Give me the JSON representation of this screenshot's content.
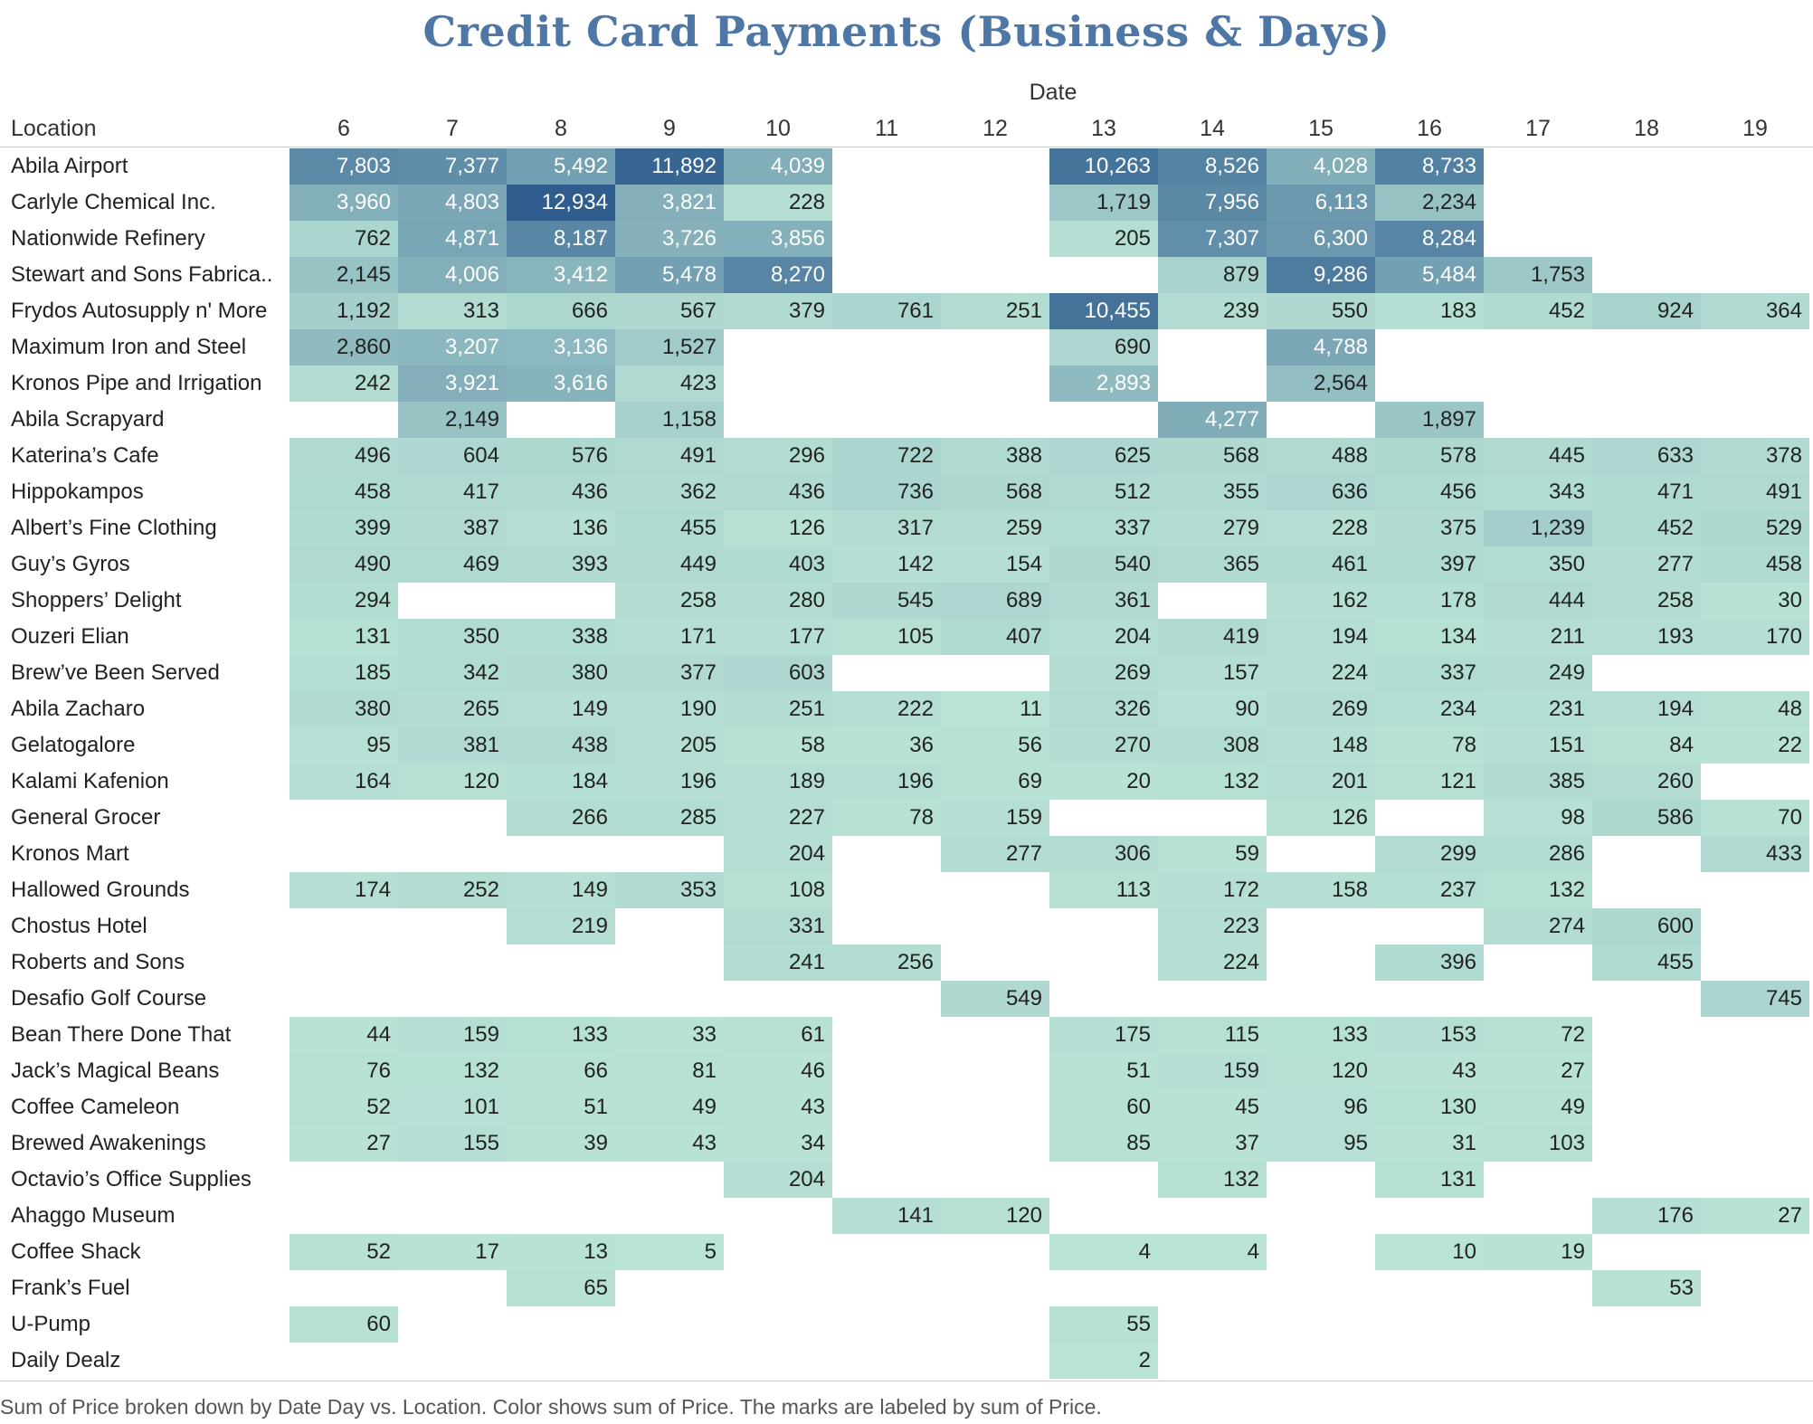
{
  "chart_data": {
    "type": "heatmap",
    "title": "Credit Card Payments (Business & Days)",
    "column_header": "Date",
    "row_header": "Location",
    "caption": "Sum of Price broken down by Date Day vs. Location.  Color shows sum of Price.  The marks are labeled by sum of Price.",
    "columns": [
      "6",
      "7",
      "8",
      "9",
      "10",
      "11",
      "12",
      "13",
      "14",
      "15",
      "16",
      "17",
      "18",
      "19"
    ],
    "rows": [
      {
        "label": "Abila Airport",
        "values": [
          7803,
          7377,
          5492,
          11892,
          4039,
          null,
          null,
          10263,
          8526,
          4028,
          8733,
          null,
          null,
          null
        ]
      },
      {
        "label": "Carlyle Chemical Inc.",
        "values": [
          3960,
          4803,
          12934,
          3821,
          228,
          null,
          null,
          1719,
          7956,
          6113,
          2234,
          null,
          null,
          null
        ]
      },
      {
        "label": "Nationwide Refinery",
        "values": [
          762,
          4871,
          8187,
          3726,
          3856,
          null,
          null,
          205,
          7307,
          6300,
          8284,
          null,
          null,
          null
        ]
      },
      {
        "label": "Stewart and Sons Fabrica..",
        "values": [
          2145,
          4006,
          3412,
          5478,
          8270,
          null,
          null,
          null,
          879,
          9286,
          5484,
          1753,
          null,
          null
        ]
      },
      {
        "label": "Frydos Autosupply n' More",
        "values": [
          1192,
          313,
          666,
          567,
          379,
          761,
          251,
          10455,
          239,
          550,
          183,
          452,
          924,
          364
        ]
      },
      {
        "label": "Maximum Iron and Steel",
        "values": [
          2860,
          3207,
          3136,
          1527,
          null,
          null,
          null,
          690,
          null,
          4788,
          null,
          null,
          null,
          null
        ]
      },
      {
        "label": "Kronos Pipe and Irrigation",
        "values": [
          242,
          3921,
          3616,
          423,
          null,
          null,
          null,
          2893,
          null,
          2564,
          null,
          null,
          null,
          null
        ]
      },
      {
        "label": "Abila Scrapyard",
        "values": [
          null,
          2149,
          null,
          1158,
          null,
          null,
          null,
          null,
          4277,
          null,
          1897,
          null,
          null,
          null
        ]
      },
      {
        "label": "Katerina’s Cafe",
        "values": [
          496,
          604,
          576,
          491,
          296,
          722,
          388,
          625,
          568,
          488,
          578,
          445,
          633,
          378
        ]
      },
      {
        "label": "Hippokampos",
        "values": [
          458,
          417,
          436,
          362,
          436,
          736,
          568,
          512,
          355,
          636,
          456,
          343,
          471,
          491
        ]
      },
      {
        "label": "Albert’s Fine Clothing",
        "values": [
          399,
          387,
          136,
          455,
          126,
          317,
          259,
          337,
          279,
          228,
          375,
          1239,
          452,
          529
        ]
      },
      {
        "label": "Guy’s Gyros",
        "values": [
          490,
          469,
          393,
          449,
          403,
          142,
          154,
          540,
          365,
          461,
          397,
          350,
          277,
          458
        ]
      },
      {
        "label": "Shoppers’ Delight",
        "values": [
          294,
          null,
          null,
          258,
          280,
          545,
          689,
          361,
          null,
          162,
          178,
          444,
          258,
          30
        ]
      },
      {
        "label": "Ouzeri Elian",
        "values": [
          131,
          350,
          338,
          171,
          177,
          105,
          407,
          204,
          419,
          194,
          134,
          211,
          193,
          170
        ]
      },
      {
        "label": "Brew’ve Been Served",
        "values": [
          185,
          342,
          380,
          377,
          603,
          null,
          null,
          269,
          157,
          224,
          337,
          249,
          null,
          null
        ]
      },
      {
        "label": "Abila Zacharo",
        "values": [
          380,
          265,
          149,
          190,
          251,
          222,
          11,
          326,
          90,
          269,
          234,
          231,
          194,
          48
        ]
      },
      {
        "label": "Gelatogalore",
        "values": [
          95,
          381,
          438,
          205,
          58,
          36,
          56,
          270,
          308,
          148,
          78,
          151,
          84,
          22
        ]
      },
      {
        "label": "Kalami Kafenion",
        "values": [
          164,
          120,
          184,
          196,
          189,
          196,
          69,
          20,
          132,
          201,
          121,
          385,
          260,
          null
        ]
      },
      {
        "label": "General Grocer",
        "values": [
          null,
          null,
          266,
          285,
          227,
          78,
          159,
          null,
          null,
          126,
          null,
          98,
          586,
          70
        ]
      },
      {
        "label": "Kronos Mart",
        "values": [
          null,
          null,
          null,
          null,
          204,
          null,
          277,
          306,
          59,
          null,
          299,
          286,
          null,
          433
        ]
      },
      {
        "label": "Hallowed Grounds",
        "values": [
          174,
          252,
          149,
          353,
          108,
          null,
          null,
          113,
          172,
          158,
          237,
          132,
          null,
          null
        ]
      },
      {
        "label": "Chostus Hotel",
        "values": [
          null,
          null,
          219,
          null,
          331,
          null,
          null,
          null,
          223,
          null,
          null,
          274,
          600,
          null
        ]
      },
      {
        "label": "Roberts and Sons",
        "values": [
          null,
          null,
          null,
          null,
          241,
          256,
          null,
          null,
          224,
          null,
          396,
          null,
          455,
          null
        ]
      },
      {
        "label": "Desafio Golf Course",
        "values": [
          null,
          null,
          null,
          null,
          null,
          null,
          549,
          null,
          null,
          null,
          null,
          null,
          null,
          745
        ]
      },
      {
        "label": "Bean There Done That",
        "values": [
          44,
          159,
          133,
          33,
          61,
          null,
          null,
          175,
          115,
          133,
          153,
          72,
          null,
          null
        ]
      },
      {
        "label": "Jack’s Magical Beans",
        "values": [
          76,
          132,
          66,
          81,
          46,
          null,
          null,
          51,
          159,
          120,
          43,
          27,
          null,
          null
        ]
      },
      {
        "label": "Coffee Cameleon",
        "values": [
          52,
          101,
          51,
          49,
          43,
          null,
          null,
          60,
          45,
          96,
          130,
          49,
          null,
          null
        ]
      },
      {
        "label": "Brewed Awakenings",
        "values": [
          27,
          155,
          39,
          43,
          34,
          null,
          null,
          85,
          37,
          95,
          31,
          103,
          null,
          null
        ]
      },
      {
        "label": "Octavio’s Office Supplies",
        "values": [
          null,
          null,
          null,
          null,
          204,
          null,
          null,
          null,
          132,
          null,
          131,
          null,
          null,
          null
        ]
      },
      {
        "label": "Ahaggo Museum",
        "values": [
          null,
          null,
          null,
          null,
          null,
          141,
          120,
          null,
          null,
          null,
          null,
          null,
          176,
          27
        ]
      },
      {
        "label": "Coffee Shack",
        "values": [
          52,
          17,
          13,
          5,
          null,
          null,
          null,
          4,
          4,
          null,
          10,
          19,
          null,
          null
        ]
      },
      {
        "label": "Frank’s Fuel",
        "values": [
          null,
          null,
          65,
          null,
          null,
          null,
          null,
          null,
          null,
          null,
          null,
          null,
          53,
          null
        ]
      },
      {
        "label": "U-Pump",
        "values": [
          60,
          null,
          null,
          null,
          null,
          null,
          null,
          55,
          null,
          null,
          null,
          null,
          null,
          null
        ]
      },
      {
        "label": "Daily Dealz",
        "values": [
          null,
          null,
          null,
          null,
          null,
          null,
          null,
          2,
          null,
          null,
          null,
          null,
          null,
          null
        ]
      }
    ],
    "color_scale": {
      "min": 0,
      "max": 12934,
      "colors": [
        "#b9e3d6",
        "#2e5d8e"
      ]
    }
  }
}
